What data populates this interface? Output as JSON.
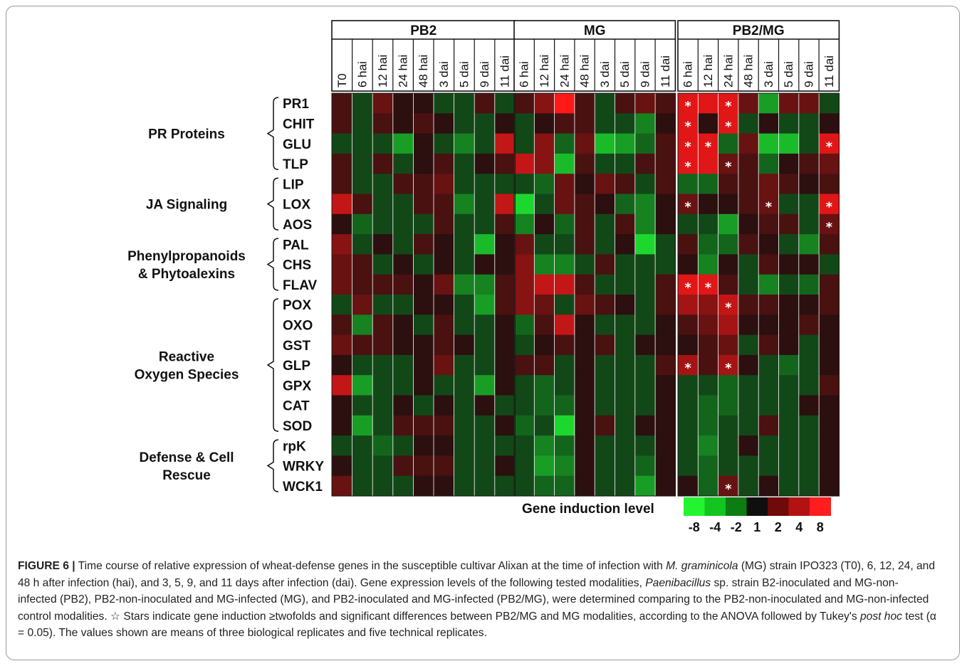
{
  "chart_data": {
    "type": "heatmap",
    "groups": [
      {
        "name": "PB2",
        "columns": [
          "T0",
          "6 hai",
          "12 hai",
          "24 hai",
          "48 hai",
          "3 dai",
          "5 dai",
          "9 dai",
          "11 dai"
        ]
      },
      {
        "name": "MG",
        "columns": [
          "6 hai",
          "12 hai",
          "24 hai",
          "48 hai",
          "3 dai",
          "5 dai",
          "9 dai",
          "11 dai"
        ]
      },
      {
        "name": "PB2/MG",
        "columns": [
          "6 hai",
          "12 hai",
          "24 hai",
          "48 hai",
          "3 dai",
          "5 dai",
          "9 dai",
          "11 dai"
        ]
      }
    ],
    "genes": [
      "PR1",
      "CHIT",
      "GLU",
      "TLP",
      "LIP",
      "LOX",
      "AOS",
      "PAL",
      "CHS",
      "FLAV",
      "POX",
      "OXO",
      "GST",
      "GLP",
      "GPX",
      "CAT",
      "SOD",
      "rpK",
      "WRKY",
      "WCK1"
    ],
    "categories": [
      {
        "label": [
          "PR Proteins"
        ],
        "genes": [
          "PR1",
          "CHIT",
          "GLU",
          "TLP"
        ]
      },
      {
        "label": [
          "JA Signaling"
        ],
        "genes": [
          "LIP",
          "LOX",
          "AOS"
        ]
      },
      {
        "label": [
          "Phenylpropanoids",
          "& Phytoalexins"
        ],
        "genes": [
          "PAL",
          "CHS",
          "FLAV"
        ]
      },
      {
        "label": [
          "Reactive",
          "Oxygen Species"
        ],
        "genes": [
          "POX",
          "OXO",
          "GST",
          "GLP",
          "GPX",
          "CAT",
          "SOD"
        ]
      },
      {
        "label": [
          "Defense & Cell",
          "Rescue"
        ],
        "genes": [
          "rpK",
          "WRKY",
          "WCK1"
        ]
      }
    ],
    "values": {
      "PB2": [
        [
          2,
          -2,
          3,
          1,
          1,
          -2,
          -2,
          2,
          -2
        ],
        [
          2,
          -2,
          2,
          1,
          2,
          1,
          -2,
          -2,
          1
        ],
        [
          -2,
          -2,
          -2,
          -5,
          1,
          -2,
          -4,
          -2,
          6
        ],
        [
          2,
          -2,
          2,
          -2,
          1,
          2,
          -2,
          1,
          2
        ],
        [
          2,
          -2,
          -2,
          2,
          2,
          3,
          -2,
          -2,
          -2
        ],
        [
          6,
          2,
          -2,
          -2,
          2,
          2,
          -4,
          -2,
          6
        ],
        [
          1,
          -3,
          -2,
          -2,
          -2,
          2,
          -2,
          -2,
          2
        ],
        [
          4,
          -2,
          1,
          -2,
          2,
          1,
          -2,
          -6,
          1
        ],
        [
          3,
          2,
          -2,
          1,
          -2,
          1,
          -2,
          1,
          1
        ],
        [
          3,
          2,
          2,
          2,
          1,
          3,
          -4,
          -4,
          2
        ],
        [
          -2,
          3,
          -2,
          -2,
          1,
          1,
          -2,
          -5,
          2
        ],
        [
          2,
          -4,
          2,
          1,
          -2,
          2,
          -2,
          -2,
          1
        ],
        [
          3,
          2,
          2,
          1,
          1,
          2,
          1,
          -2,
          1
        ],
        [
          1,
          -2,
          -2,
          -2,
          1,
          3,
          -2,
          -2,
          1
        ],
        [
          6,
          -5,
          -2,
          -2,
          1,
          -2,
          -2,
          -5,
          1
        ],
        [
          1,
          -2,
          -2,
          1,
          -2,
          1,
          -2,
          1,
          -2
        ],
        [
          1,
          -5,
          -2,
          2,
          2,
          2,
          -2,
          -2,
          1
        ],
        [
          -2,
          -2,
          -3,
          -2,
          1,
          1,
          -2,
          -2,
          -2
        ],
        [
          1,
          -2,
          -2,
          2,
          2,
          2,
          -2,
          -2,
          1
        ],
        [
          3,
          -2,
          -2,
          -2,
          1,
          1,
          -2,
          -2,
          -2
        ]
      ],
      "MG": [
        [
          2,
          4,
          8,
          2,
          -2,
          2,
          3,
          2
        ],
        [
          -2,
          1,
          2,
          2,
          -2,
          -2,
          -4,
          1
        ],
        [
          -2,
          4,
          -3,
          3,
          -6,
          -5,
          -3,
          2
        ],
        [
          6,
          4,
          -6,
          2,
          -2,
          -2,
          2,
          2
        ],
        [
          -2,
          -3,
          3,
          1,
          3,
          2,
          -2,
          2
        ],
        [
          -7,
          -2,
          3,
          2,
          1,
          -3,
          -4,
          1
        ],
        [
          -4,
          1,
          -3,
          2,
          -2,
          2,
          -4,
          1
        ],
        [
          3,
          -2,
          -2,
          2,
          -2,
          1,
          -7,
          -2
        ],
        [
          4,
          -4,
          -4,
          -2,
          2,
          -2,
          -2,
          -2
        ],
        [
          4,
          6,
          6,
          2,
          -2,
          -2,
          -2,
          2
        ],
        [
          4,
          3,
          -2,
          3,
          2,
          1,
          -2,
          2
        ],
        [
          -3,
          2,
          6,
          1,
          -2,
          -2,
          -2,
          1
        ],
        [
          -2,
          1,
          2,
          1,
          2,
          -2,
          1,
          1
        ],
        [
          2,
          2,
          -2,
          1,
          -2,
          -2,
          -2,
          2
        ],
        [
          -2,
          -3,
          -2,
          1,
          -2,
          -2,
          -2,
          1
        ],
        [
          -2,
          -3,
          -3,
          1,
          -2,
          -2,
          -2,
          1
        ],
        [
          -3,
          -2,
          -7,
          1,
          2,
          -2,
          1,
          1
        ],
        [
          -2,
          -4,
          -3,
          1,
          -2,
          -2,
          -2,
          1
        ],
        [
          -2,
          -5,
          -4,
          1,
          -2,
          -2,
          -3,
          1
        ],
        [
          -2,
          -3,
          -3,
          1,
          -2,
          -2,
          -5,
          1
        ]
      ],
      "PB2/MG": [
        [
          7,
          7,
          7,
          3,
          -5,
          3,
          3,
          -2
        ],
        [
          7,
          1,
          7,
          -2,
          1,
          -2,
          -2,
          1
        ],
        [
          7,
          7,
          -3,
          3,
          -6,
          -6,
          -2,
          7
        ],
        [
          7,
          7,
          3,
          2,
          -3,
          1,
          2,
          3
        ],
        [
          -3,
          -3,
          2,
          2,
          3,
          2,
          1,
          2
        ],
        [
          3,
          1,
          1,
          2,
          3,
          -2,
          -2,
          7
        ],
        [
          -2,
          -2,
          -5,
          1,
          2,
          2,
          -2,
          3
        ],
        [
          2,
          -3,
          -3,
          2,
          1,
          -2,
          -4,
          2
        ],
        [
          1,
          -4,
          1,
          -2,
          2,
          1,
          1,
          -2
        ],
        [
          7,
          7,
          2,
          -2,
          -4,
          -2,
          -3,
          2
        ],
        [
          5,
          4,
          6,
          2,
          2,
          1,
          1,
          2
        ],
        [
          2,
          3,
          5,
          1,
          1,
          1,
          2,
          1
        ],
        [
          1,
          2,
          3,
          -2,
          2,
          1,
          -2,
          1
        ],
        [
          5,
          2,
          5,
          1,
          -2,
          -3,
          -2,
          1
        ],
        [
          -2,
          -2,
          -3,
          -2,
          -2,
          -2,
          -2,
          2
        ],
        [
          -2,
          -3,
          -3,
          -2,
          -2,
          -2,
          1,
          1
        ],
        [
          -2,
          -3,
          -2,
          -2,
          2,
          -2,
          -2,
          1
        ],
        [
          -2,
          -4,
          -2,
          1,
          -2,
          -2,
          -2,
          1
        ],
        [
          -2,
          -3,
          -2,
          -2,
          -2,
          -2,
          -2,
          1
        ],
        [
          1,
          -3,
          3,
          -2,
          1,
          -2,
          -2,
          1
        ]
      ]
    },
    "stars": {
      "PB2": [],
      "MG": [],
      "PB2/MG": [
        [
          0,
          0
        ],
        [
          0,
          2
        ],
        [
          1,
          0
        ],
        [
          1,
          2
        ],
        [
          2,
          0
        ],
        [
          2,
          1
        ],
        [
          2,
          7
        ],
        [
          3,
          0
        ],
        [
          3,
          2
        ],
        [
          5,
          0
        ],
        [
          5,
          4
        ],
        [
          5,
          7
        ],
        [
          6,
          7
        ],
        [
          9,
          0
        ],
        [
          9,
          1
        ],
        [
          10,
          2
        ],
        [
          13,
          0
        ],
        [
          13,
          2
        ],
        [
          19,
          2
        ]
      ]
    },
    "legend": {
      "title": "Gene induction level",
      "ticks": [
        "-8",
        "-4",
        "-2",
        "1",
        "2",
        "4",
        "8"
      ],
      "colors": [
        "#22f530",
        "#12c61f",
        "#0b7d12",
        "#0f0f0f",
        "#6e0a0a",
        "#b31212",
        "#ff1d1d"
      ]
    }
  },
  "caption": {
    "label": "FIGURE 6 |",
    "t1": " Time course of relative expression of wheat-defense genes in the susceptible cultivar Alixan at the time of infection with ",
    "i1": "M. graminicola",
    "t2": " (MG) strain IPO323 (T0), 6, 12, 24, and 48 h after infection (hai), and 3, 5, 9, and 11 days after infection (dai). Gene expression levels of the following tested modalities, ",
    "i2": "Paenibacillus",
    "t3": " sp. strain B2-inoculated and MG-non-infected (PB2), PB2-non-inoculated and MG-infected (MG), and PB2-inoculated and MG-infected (PB2/MG), were determined comparing to the PB2-non-inoculated and MG-non-infected control modalities. ☆ Stars indicate gene induction ≥twofolds and significant differences between PB2/MG and MG modalities, according to the ANOVA followed by Tukey's ",
    "i3": "post hoc",
    "t4": " test (α = 0.05). The values shown are means of three biological replicates and five technical replicates."
  }
}
